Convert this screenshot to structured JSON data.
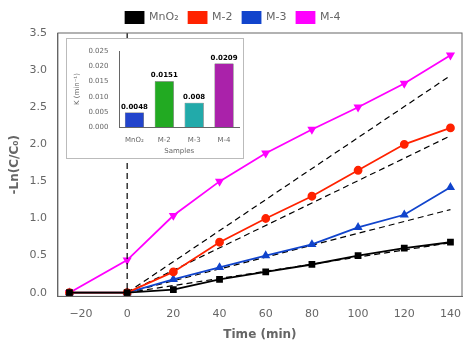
{
  "chart_data": [
    {
      "type": "line",
      "xlabel": "Time (min)",
      "ylabel": "-Ln(C/C₀)",
      "xlim": [
        -30,
        145
      ],
      "ylim": [
        -0.05,
        3.5
      ],
      "xticks": [
        {
          "value": -20,
          "label": "−20"
        },
        0,
        20,
        40,
        60,
        80,
        100,
        120,
        140
      ],
      "yticks": [
        {
          "value": 0,
          "label": "0.0"
        },
        0.5,
        {
          "value": 1,
          "label": "1.0"
        },
        1.5,
        {
          "value": 2,
          "label": "2.0"
        },
        2.5,
        {
          "value": 3,
          "label": "3.0"
        },
        3.5
      ],
      "grid": false,
      "legend": "top",
      "vline": {
        "x": 0,
        "color": "black",
        "line_style": "dashed"
      },
      "series": [
        {
          "name": "MnO₂",
          "color": "black",
          "marker": "square",
          "line_style": "solid",
          "x": [
            -25,
            0,
            20,
            40,
            60,
            80,
            100,
            120,
            140
          ],
          "values": [
            0.0,
            0.0,
            0.04,
            0.18,
            0.28,
            0.38,
            0.5,
            0.6,
            0.68
          ],
          "fit": {
            "x": [
              0,
              140
            ],
            "values": [
              0,
              0.672
            ],
            "color": "black",
            "line_style": "dashed"
          }
        },
        {
          "name": "M-2",
          "color": "#ff2200",
          "marker": "circle",
          "line_style": "solid",
          "x": [
            -25,
            0,
            20,
            40,
            60,
            80,
            100,
            120,
            140
          ],
          "values": [
            0.0,
            0.0,
            0.28,
            0.68,
            1.0,
            1.3,
            1.65,
            2.0,
            2.22
          ],
          "fit": {
            "x": [
              0,
              140
            ],
            "values": [
              0,
              2.114
            ],
            "color": "black",
            "line_style": "dashed"
          }
        },
        {
          "name": "M-3",
          "color": "#1144cc",
          "marker": "triangle-up",
          "line_style": "solid",
          "x": [
            -25,
            0,
            20,
            40,
            60,
            80,
            100,
            120,
            140
          ],
          "values": [
            0.0,
            0.0,
            0.18,
            0.34,
            0.5,
            0.65,
            0.88,
            1.05,
            1.42
          ],
          "fit": {
            "x": [
              0,
              140
            ],
            "values": [
              0,
              1.12
            ],
            "color": "black",
            "line_style": "dashed"
          }
        },
        {
          "name": "M-4",
          "color": "#ff00ff",
          "marker": "triangle-down",
          "line_style": "solid",
          "x": [
            -25,
            0,
            20,
            40,
            60,
            80,
            100,
            120,
            140
          ],
          "values": [
            0.0,
            0.44,
            1.04,
            1.5,
            1.88,
            2.2,
            2.5,
            2.82,
            3.2
          ],
          "fit": {
            "x": [
              0,
              140
            ],
            "values": [
              0,
              2.926
            ],
            "color": "black",
            "line_style": "dashed"
          }
        }
      ]
    },
    {
      "type": "bar",
      "xlabel": "Samples",
      "ylabel": "K (min⁻¹)",
      "categories": [
        "MnO₂",
        "M-2",
        "M-3",
        "M-4"
      ],
      "values": [
        0.0048,
        0.0151,
        0.008,
        0.0209
      ],
      "colors": [
        "#2244cc",
        "#22aa22",
        "#22aaaa",
        "#aa22aa"
      ],
      "ylim": [
        0,
        0.025
      ],
      "yticks": [
        {
          "value": 0,
          "label": "0.000"
        },
        0.005,
        {
          "value": 0.01,
          "label": "0.010"
        },
        0.015,
        {
          "value": 0.02,
          "label": "0.020"
        },
        0.025
      ],
      "grid": false,
      "data_labels": true
    }
  ]
}
